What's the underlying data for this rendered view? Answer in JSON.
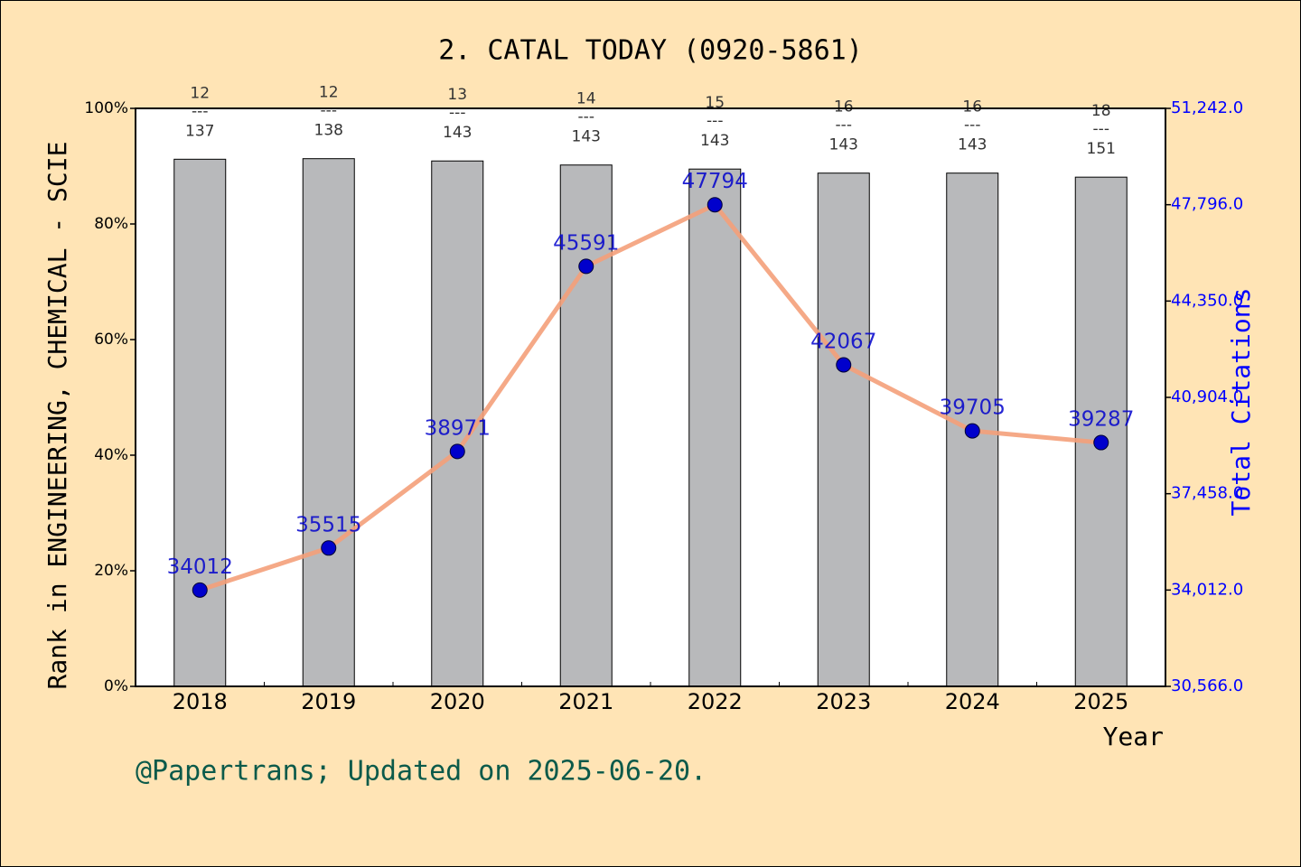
{
  "chart_data": {
    "type": "bar",
    "title": "2. CATAL TODAY (0920-5861)",
    "x_label": "Year",
    "y_label": "Rank in ENGINEERING, CHEMICAL - SCIE",
    "y2_label": "Total Citations",
    "footer": "@Papertrans; Updated on 2025-06-20.",
    "categories": [
      "2018",
      "2019",
      "2020",
      "2021",
      "2022",
      "2023",
      "2024",
      "2025"
    ],
    "separator": "---",
    "series": [
      {
        "type": "bar",
        "color": "#b8b9bb",
        "values": [
          91.2,
          91.3,
          90.9,
          90.2,
          89.5,
          88.8,
          88.8,
          88.1
        ],
        "rank_labels": [
          "12",
          "12",
          "13",
          "14",
          "15",
          "16",
          "16",
          "18"
        ],
        "total_labels": [
          "137",
          "138",
          "143",
          "143",
          "143",
          "143",
          "143",
          "151"
        ]
      },
      {
        "type": "line",
        "axis": "y2",
        "color": "#f4a07a",
        "marker_color": "#0000cc",
        "values": [
          34012,
          35515,
          38971,
          45591,
          47794,
          42067,
          39705,
          39287
        ]
      }
    ],
    "ylim": [
      0,
      100
    ],
    "yticks": [
      {
        "value": 0,
        "label": "0%"
      },
      {
        "value": 20,
        "label": "20%"
      },
      {
        "value": 40,
        "label": "40%"
      },
      {
        "value": 60,
        "label": "60%"
      },
      {
        "value": 80,
        "label": "80%"
      },
      {
        "value": 100,
        "label": "100%"
      }
    ],
    "y2lim": [
      30566,
      51242
    ],
    "y2ticks": [
      {
        "value": 30566,
        "label": "30,566.0"
      },
      {
        "value": 34012,
        "label": "34,012.0"
      },
      {
        "value": 37458,
        "label": "37,458.0"
      },
      {
        "value": 40904,
        "label": "40,904.0"
      },
      {
        "value": 44350,
        "label": "44,350.0"
      },
      {
        "value": 47796,
        "label": "47,796.0"
      },
      {
        "value": 51242,
        "label": "51,242.0"
      }
    ]
  }
}
